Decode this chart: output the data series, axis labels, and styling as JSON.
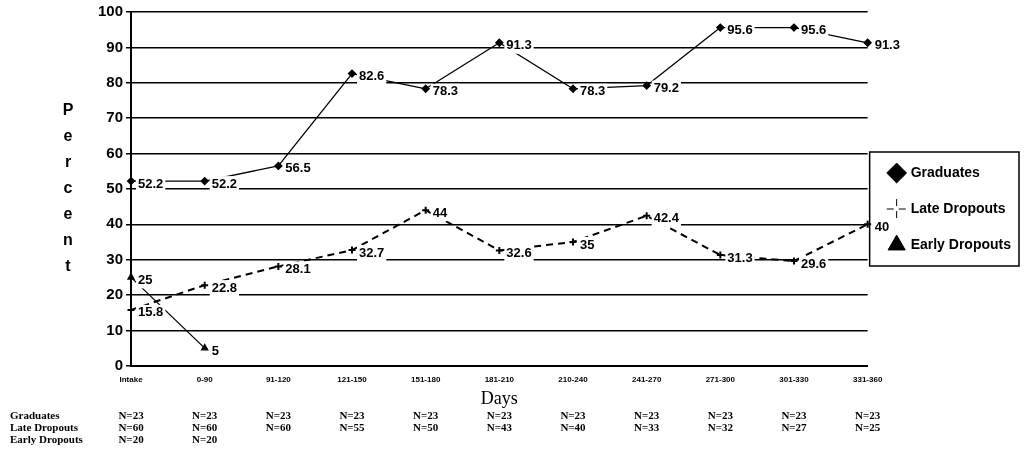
{
  "chart_data": {
    "type": "line",
    "xlabel": "Days",
    "ylabel": "Percent",
    "categories": [
      "Intake",
      "0-90",
      "91-120",
      "121-150",
      "151-180",
      "181-210",
      "210-240",
      "241-270",
      "271-300",
      "301-330",
      "331-360"
    ],
    "series": [
      {
        "name": "Graduates",
        "color": "#000000",
        "marker": "diamond",
        "line_style": "solid",
        "values": [
          52.2,
          52.2,
          56.5,
          82.6,
          78.3,
          91.3,
          78.3,
          79.2,
          95.6,
          95.6,
          91.3
        ]
      },
      {
        "name": "Late Dropouts",
        "color": "#000000",
        "marker": "cross",
        "line_style": "dashed",
        "values": [
          15.8,
          22.8,
          28.1,
          32.7,
          44,
          32.6,
          35,
          42.4,
          31.3,
          29.6,
          40
        ]
      },
      {
        "name": "Early Dropouts",
        "color": "#000000",
        "marker": "triangle",
        "line_style": "solid",
        "values": [
          25,
          5,
          null,
          null,
          null,
          null,
          null,
          null,
          null,
          null,
          null
        ]
      }
    ],
    "ylim": [
      0,
      100
    ],
    "yticks": [
      0,
      10,
      20,
      30,
      40,
      50,
      60,
      70,
      80,
      90,
      100
    ],
    "grid": "y",
    "legend": "right",
    "data_labels": true,
    "annotations": [
      "Graduates",
      "Late Dropouts",
      "Early Dropouts",
      "N=23",
      "N=23",
      "N=23",
      "N=23",
      "N=23",
      "N=23",
      "N=23",
      "N=23",
      "N=23",
      "N=23",
      "N=23",
      "N=60",
      "N=60",
      "N=60",
      "N=55",
      "N=50",
      "N=43",
      "N=40",
      "N=33",
      "N=32",
      "N=27",
      "N=25",
      "N=20",
      "N=20"
    ]
  }
}
